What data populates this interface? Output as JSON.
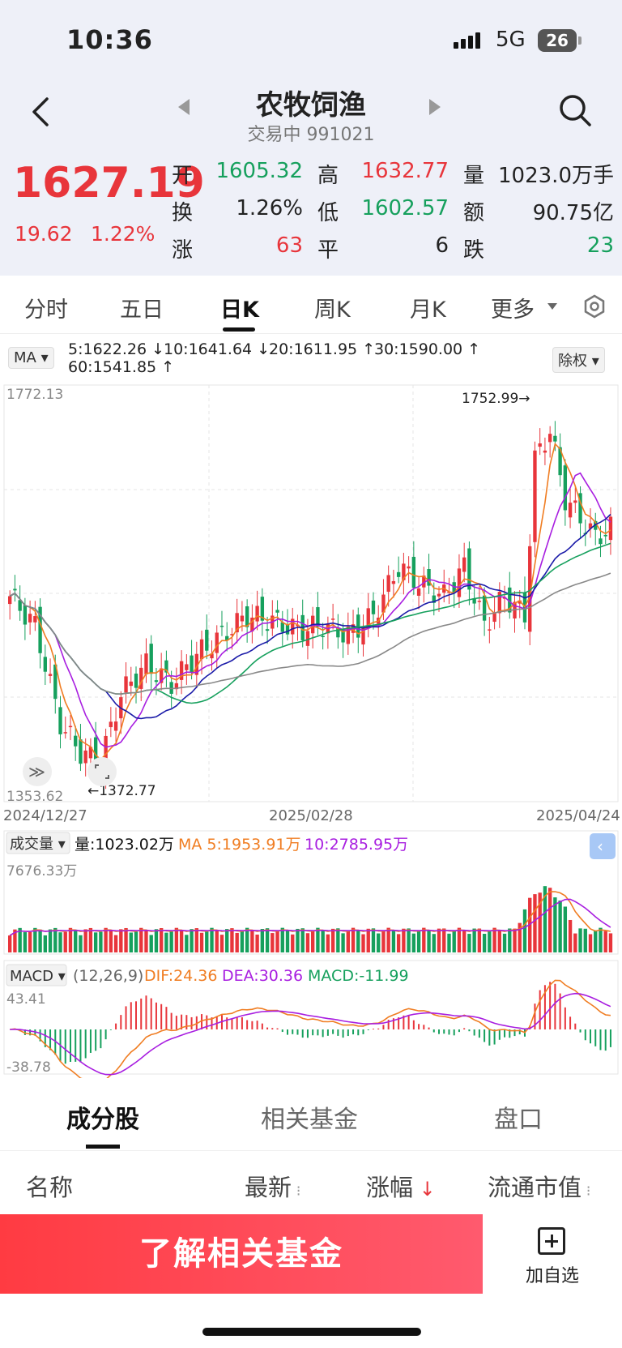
{
  "status_bar": {
    "time": "10:36",
    "network": "5G",
    "battery": "26"
  },
  "header": {
    "title": "农牧饲渔",
    "subtitle": "交易中 991021"
  },
  "quote": {
    "price": "1627.19",
    "change": "19.62",
    "change_pct": "1.22%",
    "stats": [
      {
        "label": "开",
        "value": "1605.32",
        "color": "green"
      },
      {
        "label": "高",
        "value": "1632.77",
        "color": "red"
      },
      {
        "label": "量",
        "value": "1023.0万手",
        "color": "dark"
      },
      {
        "label": "换",
        "value": "1.26%",
        "color": "dark"
      },
      {
        "label": "低",
        "value": "1602.57",
        "color": "green"
      },
      {
        "label": "额",
        "value": "90.75亿",
        "color": "dark"
      },
      {
        "label": "涨",
        "value": "63",
        "color": "red"
      },
      {
        "label": "平",
        "value": "6",
        "color": "dark"
      },
      {
        "label": "跌",
        "value": "23",
        "color": "green"
      }
    ]
  },
  "period_tabs": [
    "分时",
    "五日",
    "日K",
    "周K",
    "月K",
    "更多"
  ],
  "ma_legend": {
    "chip": "MA",
    "items": [
      {
        "text": "5:1622.26 ↓",
        "color": "#f07d22"
      },
      {
        "text": "10:1641.64 ↓",
        "color": "#a81ee0"
      },
      {
        "text": "20:1611.95 ↑",
        "color": "#1a1aa8"
      },
      {
        "text": "30:1590.00 ↑",
        "color": "#16a05d"
      },
      {
        "text": "60:1541.85 ↑",
        "color": "#444444"
      }
    ],
    "adjust": "除权"
  },
  "kline": {
    "y_max_label": "1772.13",
    "y_min_label": "1353.62",
    "high_marker": "1752.99→",
    "low_marker": "←1372.77",
    "dates": [
      "2024/12/27",
      "2025/02/28",
      "2025/04/24"
    ]
  },
  "volume": {
    "chip": "成交量",
    "current": "量:1023.02万",
    "ma5": "MA 5:1953.91万",
    "ma10": "10:2785.95万",
    "max_label": "7676.33万"
  },
  "macd": {
    "chip": "MACD",
    "params": "(12,26,9)",
    "dif": "DIF:24.36",
    "dea": "DEA:30.36",
    "macd": "MACD:-11.99",
    "max_label": "43.41",
    "min_label": "-38.78"
  },
  "bottom_tabs": [
    "成分股",
    "相关基金",
    "盘口"
  ],
  "columns": [
    "名称",
    "最新",
    "涨幅",
    "流通市值"
  ],
  "cta": {
    "button": "了解相关基金",
    "watch": "加自选"
  },
  "colors": {
    "up": "#e8353b",
    "down": "#16a05d",
    "ma5": "#f07d22",
    "ma10": "#a81ee0",
    "ma20": "#1a1aa8",
    "ma30": "#16a05d",
    "ma60": "#888888"
  }
}
